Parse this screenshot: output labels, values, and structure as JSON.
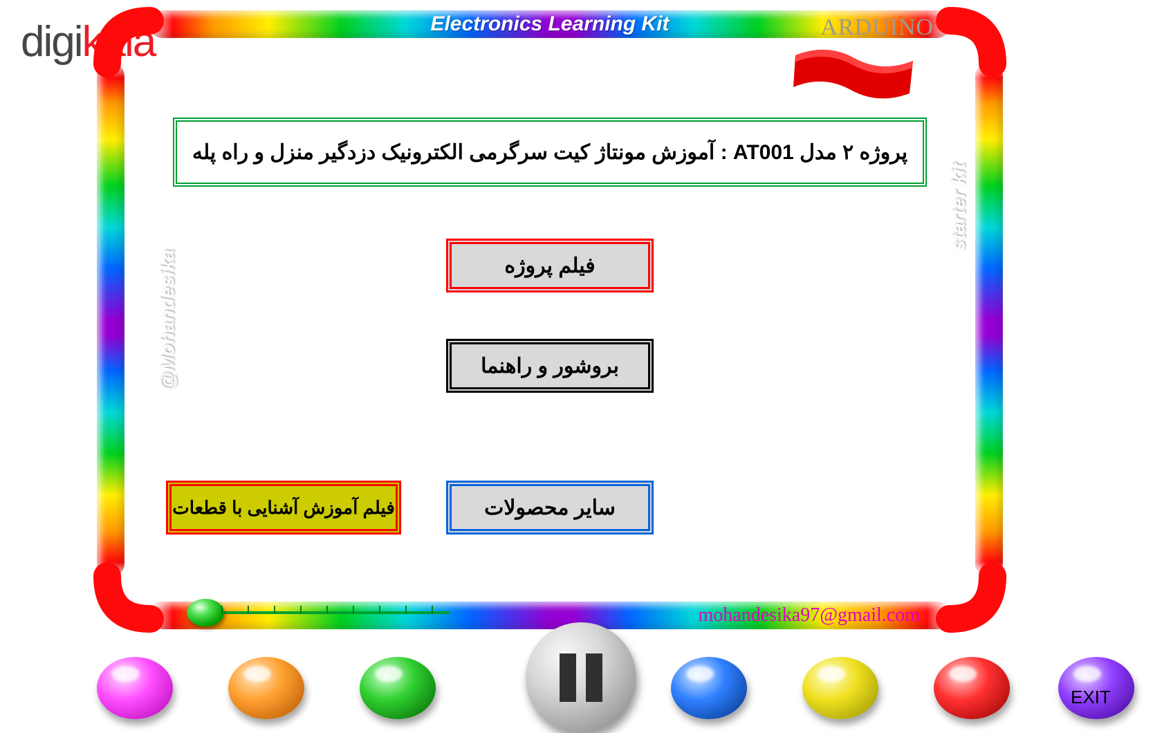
{
  "logo": {
    "part1": "digi",
    "part2": "kala"
  },
  "header": {
    "title": "Electronics Learning Kit",
    "right_label": "ARDUINO",
    "left_side": "@Mohandesika",
    "right_side": "starter kit"
  },
  "title_box": "پروژه ۲ مدل AT001 : آموزش مونتاژ کیت سرگرمی الکترونیک دزدگیر منزل و راه پله",
  "buttons": {
    "video": "فیلم پروژه",
    "guide": "بروشور و راهنما",
    "other": "سایر محصولات",
    "parts": "فیلم آموزش آشنایی با قطعات"
  },
  "email": "mohandesika97@gmail.com",
  "exit": "EXIT",
  "colors": {
    "title_border": "#00a030",
    "btn_red": "#ff0000",
    "btn_black": "#000000",
    "btn_blue": "#0066dd",
    "parts_bg": "#cccc00",
    "email_color": "#e000c8"
  },
  "slider": {
    "ticks": 9
  },
  "eggs": {
    "colors": [
      "magenta",
      "orange",
      "green",
      "blue",
      "yellow",
      "red",
      "purple"
    ]
  }
}
